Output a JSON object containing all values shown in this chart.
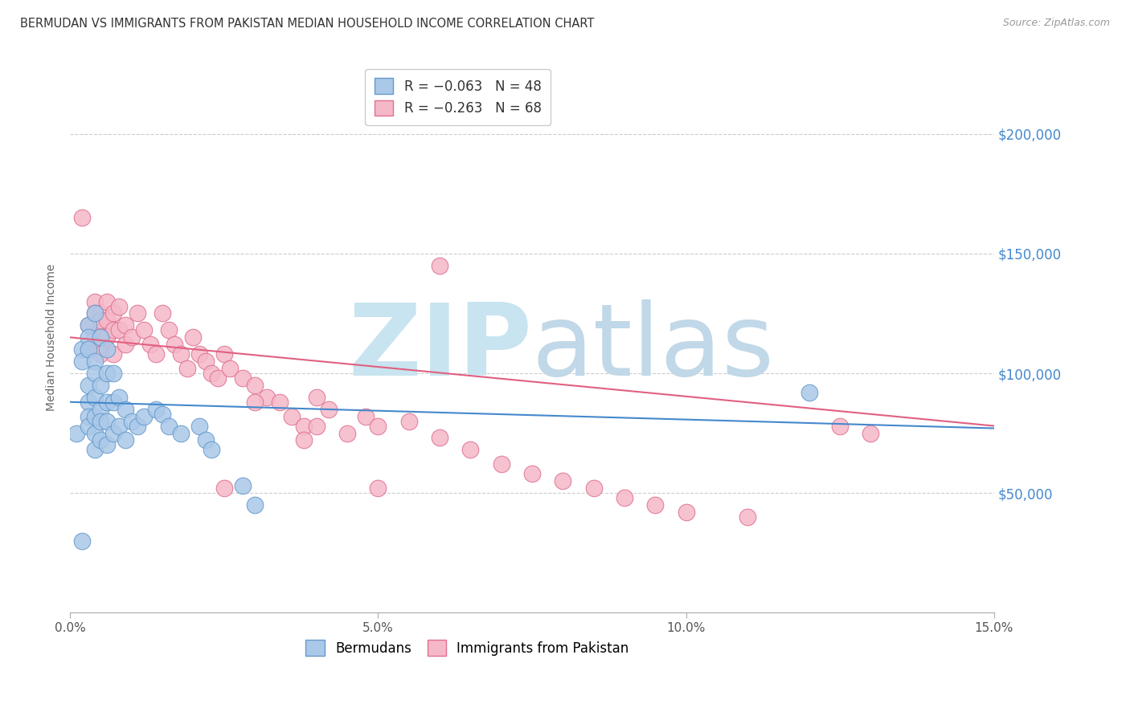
{
  "title": "BERMUDAN VS IMMIGRANTS FROM PAKISTAN MEDIAN HOUSEHOLD INCOME CORRELATION CHART",
  "source": "Source: ZipAtlas.com",
  "ylabel": "Median Household Income",
  "xlim": [
    0,
    0.15
  ],
  "ylim": [
    0,
    230000
  ],
  "yticks": [
    0,
    50000,
    100000,
    150000,
    200000
  ],
  "ytick_labels": [
    "",
    "$50,000",
    "$100,000",
    "$150,000",
    "$200,000"
  ],
  "xticks": [
    0.0,
    0.05,
    0.1,
    0.15
  ],
  "xtick_labels": [
    "0.0%",
    "5.0%",
    "10.0%",
    "15.0%"
  ],
  "bermuda_x": [
    0.001,
    0.002,
    0.002,
    0.003,
    0.003,
    0.003,
    0.003,
    0.003,
    0.003,
    0.003,
    0.004,
    0.004,
    0.004,
    0.004,
    0.004,
    0.004,
    0.004,
    0.005,
    0.005,
    0.005,
    0.005,
    0.005,
    0.006,
    0.006,
    0.006,
    0.006,
    0.006,
    0.007,
    0.007,
    0.007,
    0.008,
    0.008,
    0.009,
    0.009,
    0.01,
    0.011,
    0.012,
    0.014,
    0.015,
    0.016,
    0.018,
    0.021,
    0.022,
    0.023,
    0.028,
    0.03,
    0.12,
    0.002
  ],
  "bermuda_y": [
    75000,
    110000,
    105000,
    120000,
    115000,
    110000,
    95000,
    88000,
    82000,
    78000,
    125000,
    105000,
    100000,
    90000,
    82000,
    75000,
    68000,
    115000,
    95000,
    85000,
    80000,
    72000,
    110000,
    100000,
    88000,
    80000,
    70000,
    100000,
    88000,
    75000,
    90000,
    78000,
    85000,
    72000,
    80000,
    78000,
    82000,
    85000,
    83000,
    78000,
    75000,
    78000,
    72000,
    68000,
    53000,
    45000,
    92000,
    30000
  ],
  "pakistan_x": [
    0.002,
    0.003,
    0.003,
    0.004,
    0.004,
    0.004,
    0.005,
    0.005,
    0.005,
    0.005,
    0.005,
    0.006,
    0.006,
    0.006,
    0.007,
    0.007,
    0.007,
    0.008,
    0.008,
    0.009,
    0.009,
    0.01,
    0.011,
    0.012,
    0.013,
    0.014,
    0.015,
    0.016,
    0.017,
    0.018,
    0.019,
    0.02,
    0.021,
    0.022,
    0.023,
    0.024,
    0.025,
    0.026,
    0.028,
    0.03,
    0.032,
    0.034,
    0.036,
    0.038,
    0.04,
    0.042,
    0.045,
    0.048,
    0.05,
    0.055,
    0.06,
    0.065,
    0.07,
    0.075,
    0.08,
    0.085,
    0.09,
    0.095,
    0.1,
    0.11,
    0.04,
    0.038,
    0.03,
    0.025,
    0.05,
    0.06,
    0.125,
    0.13
  ],
  "pakistan_y": [
    165000,
    120000,
    110000,
    130000,
    125000,
    115000,
    125000,
    118000,
    112000,
    108000,
    122000,
    130000,
    122000,
    115000,
    125000,
    118000,
    108000,
    128000,
    118000,
    120000,
    112000,
    115000,
    125000,
    118000,
    112000,
    108000,
    125000,
    118000,
    112000,
    108000,
    102000,
    115000,
    108000,
    105000,
    100000,
    98000,
    108000,
    102000,
    98000,
    95000,
    90000,
    88000,
    82000,
    78000,
    90000,
    85000,
    75000,
    82000,
    78000,
    80000,
    73000,
    68000,
    62000,
    58000,
    55000,
    52000,
    48000,
    45000,
    42000,
    40000,
    78000,
    72000,
    88000,
    52000,
    52000,
    145000,
    78000,
    75000
  ],
  "blue_scatter_color": "#aac8e8",
  "blue_edge_color": "#6699cc",
  "pink_scatter_color": "#f5b8c8",
  "pink_edge_color": "#e07090",
  "blue_line_color": "#4488cc",
  "pink_line_color": "#e06080",
  "blue_line_x0": 0.0,
  "blue_line_x1": 0.15,
  "blue_line_y0": 88000,
  "blue_line_y1": 77000,
  "pink_line_x0": 0.0,
  "pink_line_x1": 0.15,
  "pink_line_y0": 115000,
  "pink_line_y1": 78000,
  "watermark_zip": "ZIP",
  "watermark_atlas": "atlas",
  "watermark_color_zip": "#c8e4f0",
  "watermark_color_atlas": "#c0d8e8",
  "background_color": "#ffffff",
  "grid_color": "#cccccc",
  "ytick_color": "#4488cc",
  "title_color": "#333333",
  "source_color": "#999999"
}
